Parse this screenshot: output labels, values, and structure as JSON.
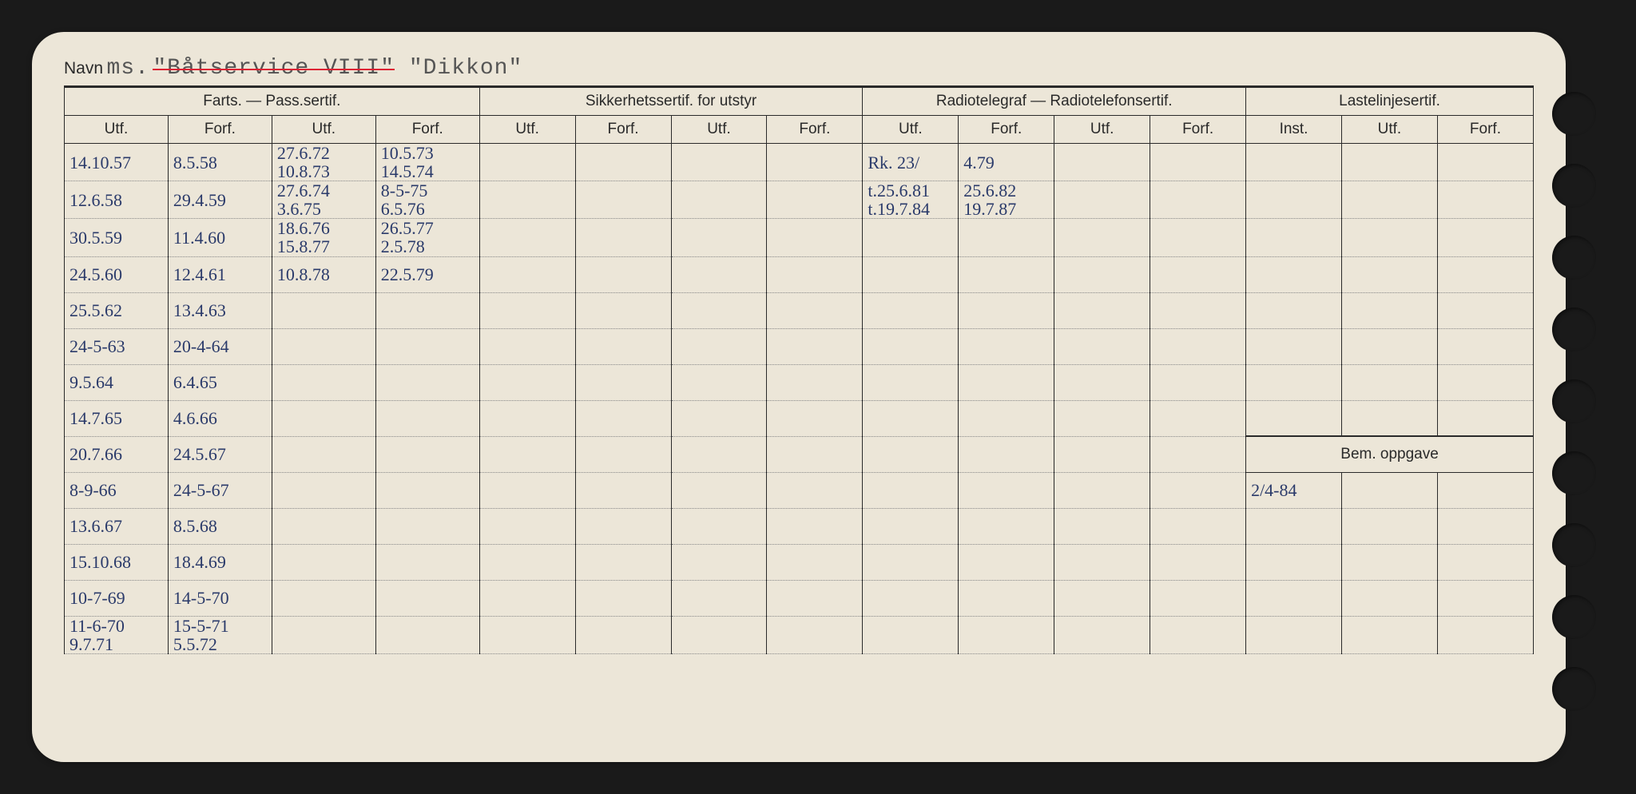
{
  "title": {
    "label": "Navn",
    "prefix": "ms.",
    "name_struck": "\"Båtservice VIII\"",
    "name_current": "\"Dikkon\""
  },
  "groupHeaders": {
    "farts": "Farts. — Pass.sertif.",
    "sikkerhet": "Sikkerhetssertif. for utstyr",
    "radio": "Radiotelegraf — Radiotelefonsertif.",
    "laste": "Lastelinjesertif."
  },
  "subHeaders": {
    "utf": "Utf.",
    "forf": "Forf.",
    "inst": "Inst.",
    "bem": "Bem. oppgave"
  },
  "holes": [
    95,
    185,
    275,
    365,
    455,
    545,
    635,
    725,
    815
  ],
  "rows": [
    {
      "c": [
        "14.10.57",
        "8.5.58",
        "27.6.72\n10.8.73",
        "10.5.73\n14.5.74",
        "",
        "",
        "",
        "",
        "Rk. 23/",
        "4.79",
        "",
        "",
        "",
        "",
        ""
      ]
    },
    {
      "c": [
        "12.6.58",
        "29.4.59",
        "27.6.74\n3.6.75",
        "8-5-75\n6.5.76",
        "",
        "",
        "",
        "",
        "t.25.6.81\nt.19.7.84",
        "25.6.82\n19.7.87",
        "",
        "",
        "",
        "",
        ""
      ]
    },
    {
      "c": [
        "30.5.59",
        "11.4.60",
        "18.6.76\n15.8.77",
        "26.5.77\n2.5.78",
        "",
        "",
        "",
        "",
        "",
        "",
        "",
        "",
        "",
        "",
        ""
      ]
    },
    {
      "c": [
        "24.5.60",
        "12.4.61",
        "10.8.78",
        "22.5.79",
        "",
        "",
        "",
        "",
        "",
        "",
        "",
        "",
        "",
        "",
        ""
      ]
    },
    {
      "c": [
        "25.5.62",
        "13.4.63",
        "",
        "",
        "",
        "",
        "",
        "",
        "",
        "",
        "",
        "",
        "",
        "",
        ""
      ]
    },
    {
      "c": [
        "24-5-63",
        "20-4-64",
        "",
        "",
        "",
        "",
        "",
        "",
        "",
        "",
        "",
        "",
        "",
        "",
        ""
      ]
    },
    {
      "c": [
        "9.5.64",
        "6.4.65",
        "",
        "",
        "",
        "",
        "",
        "",
        "",
        "",
        "",
        "",
        "",
        "",
        ""
      ]
    },
    {
      "c": [
        "14.7.65",
        "4.6.66",
        "",
        "",
        "",
        "",
        "",
        "",
        "",
        "",
        "",
        "",
        "",
        "",
        ""
      ]
    },
    {
      "c": [
        "20.7.66",
        "24.5.67",
        "",
        "",
        "",
        "",
        "",
        "",
        "",
        "",
        "",
        "",
        {
          "bem_header": true
        },
        "",
        ""
      ]
    },
    {
      "c": [
        "8-9-66",
        "24-5-67",
        "",
        "",
        "",
        "",
        "",
        "",
        "",
        "",
        "",
        "",
        "2/4-84",
        "",
        ""
      ]
    },
    {
      "c": [
        "13.6.67",
        "8.5.68",
        "",
        "",
        "",
        "",
        "",
        "",
        "",
        "",
        "",
        "",
        "",
        "",
        ""
      ]
    },
    {
      "c": [
        "15.10.68",
        "18.4.69",
        "",
        "",
        "",
        "",
        "",
        "",
        "",
        "",
        "",
        "",
        "",
        "",
        ""
      ]
    },
    {
      "c": [
        "10-7-69",
        "14-5-70",
        "",
        "",
        "",
        "",
        "",
        "",
        "",
        "",
        "",
        "",
        "",
        "",
        ""
      ]
    },
    {
      "c": [
        "11-6-70\n9.7.71",
        "15-5-71\n5.5.72",
        "",
        "",
        "",
        "",
        "",
        "",
        "",
        "",
        "",
        "",
        "",
        "",
        ""
      ]
    }
  ],
  "colors": {
    "paper": "#ece6d8",
    "ink": "#2a2a2a",
    "handwriting": "#2a3a6a",
    "redline": "#d23"
  }
}
